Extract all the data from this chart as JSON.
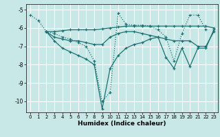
{
  "xlabel": "Humidex (Indice chaleur)",
  "bg_color": "#c8e8e8",
  "grid_color": "#ffffff",
  "line_color": "#1a7070",
  "xlim": [
    -0.5,
    23.5
  ],
  "ylim": [
    -10.6,
    -4.7
  ],
  "yticks": [
    -10,
    -9,
    -8,
    -7,
    -6,
    -5
  ],
  "xticks": [
    0,
    1,
    2,
    3,
    4,
    5,
    6,
    7,
    8,
    9,
    10,
    11,
    12,
    13,
    14,
    15,
    16,
    17,
    18,
    19,
    20,
    21,
    22,
    23
  ],
  "lines": [
    {
      "x": [
        0,
        1,
        2,
        3,
        4,
        5,
        6,
        7,
        8,
        9,
        10,
        11,
        12,
        13,
        14,
        15,
        16,
        17,
        18,
        19,
        20,
        21,
        22
      ],
      "y": [
        -5.3,
        -5.6,
        -6.2,
        -6.3,
        -6.5,
        -6.6,
        -6.8,
        -7.0,
        -7.8,
        -10.0,
        -9.5,
        -5.2,
        -5.8,
        -5.85,
        -5.85,
        -5.9,
        -6.1,
        -6.5,
        -7.8,
        -6.3,
        -5.3,
        -5.3,
        -6.1
      ],
      "style": "dotted"
    },
    {
      "x": [
        2,
        3,
        4,
        5,
        6,
        7,
        8,
        9,
        10,
        11,
        12,
        13,
        14,
        15,
        16,
        17,
        18,
        19,
        20,
        21,
        22,
        23
      ],
      "y": [
        -6.2,
        -6.2,
        -6.15,
        -6.1,
        -6.1,
        -6.1,
        -6.1,
        -6.05,
        -6.0,
        -5.95,
        -5.9,
        -5.9,
        -5.9,
        -5.9,
        -5.9,
        -5.9,
        -5.9,
        -5.9,
        -5.9,
        -5.9,
        -5.9,
        -6.0
      ],
      "style": "solid"
    },
    {
      "x": [
        2,
        3,
        4,
        5,
        6,
        7,
        8,
        9,
        10,
        11,
        12,
        13,
        14,
        15,
        16,
        17,
        18,
        19,
        20,
        21,
        22,
        23
      ],
      "y": [
        -6.2,
        -6.5,
        -6.6,
        -6.7,
        -6.7,
        -6.8,
        -6.9,
        -6.9,
        -6.5,
        -6.3,
        -6.2,
        -6.2,
        -6.3,
        -6.4,
        -6.5,
        -6.6,
        -6.7,
        -6.7,
        -6.7,
        -7.0,
        -7.0,
        -6.2
      ],
      "style": "solid"
    },
    {
      "x": [
        2,
        3,
        4,
        5,
        6,
        7,
        8,
        9,
        10,
        11,
        12,
        13,
        14,
        15,
        16,
        17,
        18,
        19,
        20,
        21,
        22,
        23
      ],
      "y": [
        -6.2,
        -6.7,
        -7.1,
        -7.3,
        -7.5,
        -7.7,
        -8.0,
        -10.4,
        -8.2,
        -7.5,
        -7.1,
        -6.9,
        -6.8,
        -6.6,
        -6.5,
        -7.6,
        -8.2,
        -7.1,
        -8.1,
        -7.1,
        -7.1,
        -6.1
      ],
      "style": "solid"
    }
  ]
}
